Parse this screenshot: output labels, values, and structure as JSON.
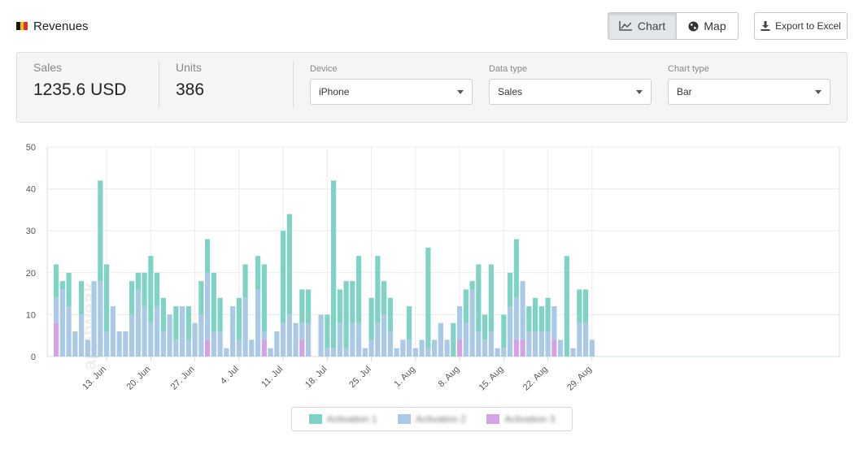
{
  "header": {
    "title": "Revenues",
    "flag_colors": [
      "#1a1a1a",
      "#f2c200",
      "#e0322a"
    ]
  },
  "toolbar": {
    "chart_label": "Chart",
    "map_label": "Map",
    "export_label": "Export to Excel"
  },
  "summary": {
    "sales_label": "Sales",
    "sales_value": "1235.6 USD",
    "units_label": "Units",
    "units_value": "386"
  },
  "filters": {
    "device_label": "Device",
    "device_value": "iPhone",
    "data_type_label": "Data type",
    "data_type_value": "Sales",
    "chart_type_label": "Chart type",
    "chart_type_value": "Bar"
  },
  "watermark": "apptweak",
  "chart_data": {
    "type": "bar",
    "stacked": true,
    "ylim": [
      0,
      50
    ],
    "yticks": [
      0,
      10,
      20,
      30,
      40,
      50
    ],
    "grid": true,
    "legend_position": "bottom",
    "x_tick_labels": [
      "13. Jun",
      "20. Jun",
      "27. Jun",
      "4. Jul",
      "11. Jul",
      "18. Jul",
      "25. Jul",
      "1. Aug",
      "8. Aug",
      "15. Aug",
      "22. Aug",
      "29. Aug"
    ],
    "x_tick_positions": [
      8,
      15,
      22,
      29,
      36,
      43,
      50,
      57,
      64,
      71,
      78,
      85
    ],
    "series": [
      {
        "name": "Activation 1",
        "color": "#7fd3c6",
        "values": [
          8,
          2,
          8,
          0,
          8,
          0,
          0,
          24,
          16,
          0,
          0,
          0,
          8,
          4,
          8,
          16,
          8,
          8,
          0,
          8,
          0,
          8,
          0,
          8,
          8,
          14,
          8,
          0,
          0,
          10,
          8,
          0,
          8,
          16,
          0,
          0,
          22,
          24,
          0,
          8,
          8,
          0,
          0,
          8,
          40,
          8,
          16,
          10,
          16,
          0,
          10,
          16,
          8,
          8,
          0,
          0,
          8,
          0,
          0,
          24,
          0,
          0,
          0,
          8,
          0,
          8,
          2,
          16,
          6,
          16,
          0,
          8,
          8,
          14,
          0,
          6,
          8,
          6,
          8,
          0,
          0,
          24,
          0,
          8,
          8,
          0
        ]
      },
      {
        "name": "Activation 2",
        "color": "#a9c9e6",
        "values": [
          6,
          16,
          12,
          6,
          10,
          4,
          18,
          18,
          6,
          12,
          6,
          6,
          10,
          16,
          12,
          8,
          12,
          6,
          10,
          4,
          12,
          4,
          8,
          10,
          16,
          6,
          6,
          2,
          12,
          4,
          14,
          4,
          16,
          2,
          2,
          6,
          8,
          10,
          8,
          4,
          8,
          0,
          10,
          2,
          2,
          8,
          2,
          8,
          8,
          2,
          4,
          8,
          10,
          6,
          2,
          4,
          4,
          2,
          4,
          2,
          4,
          8,
          4,
          0,
          8,
          8,
          16,
          6,
          4,
          6,
          2,
          2,
          12,
          10,
          14,
          6,
          6,
          6,
          6,
          8,
          4,
          0,
          2,
          8,
          8,
          4
        ]
      },
      {
        "name": "Activation 3",
        "color": "#d4a3e6",
        "values": [
          8,
          0,
          0,
          0,
          0,
          0,
          0,
          0,
          0,
          0,
          0,
          0,
          0,
          0,
          0,
          0,
          0,
          0,
          0,
          0,
          0,
          0,
          0,
          0,
          4,
          0,
          0,
          0,
          0,
          0,
          0,
          0,
          0,
          4,
          0,
          0,
          0,
          0,
          0,
          4,
          0,
          0,
          0,
          0,
          0,
          0,
          0,
          0,
          0,
          0,
          0,
          0,
          0,
          0,
          0,
          0,
          0,
          0,
          0,
          0,
          0,
          0,
          0,
          0,
          4,
          0,
          0,
          0,
          0,
          0,
          0,
          0,
          0,
          4,
          4,
          0,
          0,
          0,
          0,
          4,
          0,
          0,
          0,
          0,
          0,
          0
        ]
      }
    ]
  }
}
